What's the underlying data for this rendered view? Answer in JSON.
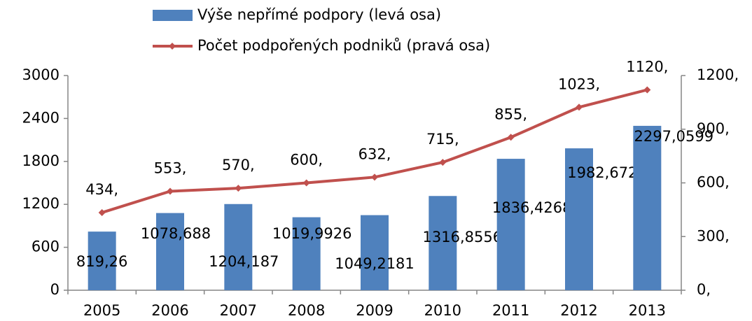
{
  "chart_data": {
    "type": "bar-line",
    "categories": [
      "2005",
      "2006",
      "2007",
      "2008",
      "2009",
      "2010",
      "2011",
      "2012",
      "2013"
    ],
    "series": [
      {
        "name": "Výše nepřímé podpory (levá osa)",
        "type": "bar",
        "color": "#4f81bd",
        "values": [
          819.26,
          1078.688,
          1204.187,
          1019.9926,
          1049.2181,
          1316.8556,
          1836.4268,
          1982.6727,
          2297.0599
        ],
        "value_labels": [
          "819,26",
          "1078,688",
          "1204,187",
          "1019,9926",
          "1049,2181",
          "1316,8556",
          "1836,4268",
          "1982,6727",
          "2297,0599"
        ]
      },
      {
        "name": "Počet podpořených podniků (pravá osa)",
        "type": "line",
        "axis": "y2",
        "color": "#c0504d",
        "values": [
          434,
          553,
          570,
          600,
          632,
          715,
          855,
          1023,
          1120
        ],
        "value_labels": [
          "434,",
          "553,",
          "570,",
          "600,",
          "632,",
          "715,",
          "855,",
          "1023,",
          "1120,"
        ]
      }
    ],
    "ylim": [
      0,
      3000
    ],
    "yticks": [
      0,
      600,
      1200,
      1800,
      2400,
      3000
    ],
    "y2lim": [
      0,
      1200
    ],
    "y2ticks": [
      {
        "value": 0,
        "label": "0,"
      },
      {
        "value": 300,
        "label": "300,"
      },
      {
        "value": 600,
        "label": "600,"
      },
      {
        "value": 900,
        "label": "900,"
      },
      {
        "value": 1200,
        "label": "1200,"
      }
    ],
    "grid": false
  }
}
